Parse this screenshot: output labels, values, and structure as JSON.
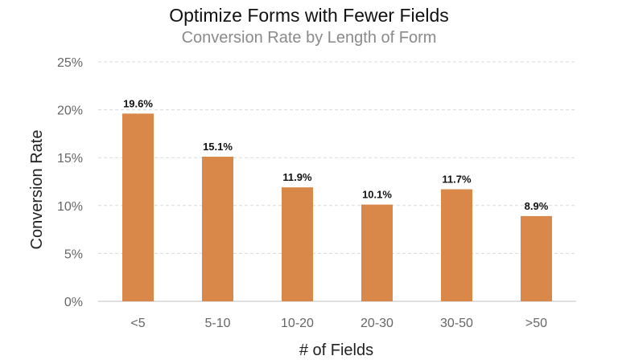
{
  "chart_data": {
    "type": "bar",
    "title": "Optimize Forms with Fewer Fields",
    "subtitle": "Conversion Rate by Length of Form",
    "xlabel": "# of Fields",
    "ylabel": "Conversion Rate",
    "categories": [
      "<5",
      "5-10",
      "10-20",
      "20-30",
      "30-50",
      ">50"
    ],
    "values": [
      19.6,
      15.1,
      11.9,
      10.1,
      11.7,
      8.9
    ],
    "data_labels": [
      "19.6%",
      "15.1%",
      "11.9%",
      "10.1%",
      "11.7%",
      "8.9%"
    ],
    "ylim": [
      0,
      25
    ],
    "yticks": [
      "0%",
      "5%",
      "10%",
      "15%",
      "20%",
      "25%"
    ],
    "grid": true,
    "grid_style": "dashed",
    "legend": "none",
    "colors": {
      "bar": "#D9884A",
      "grid": "#d9d9d9",
      "axis": "#bfbfbf"
    }
  }
}
